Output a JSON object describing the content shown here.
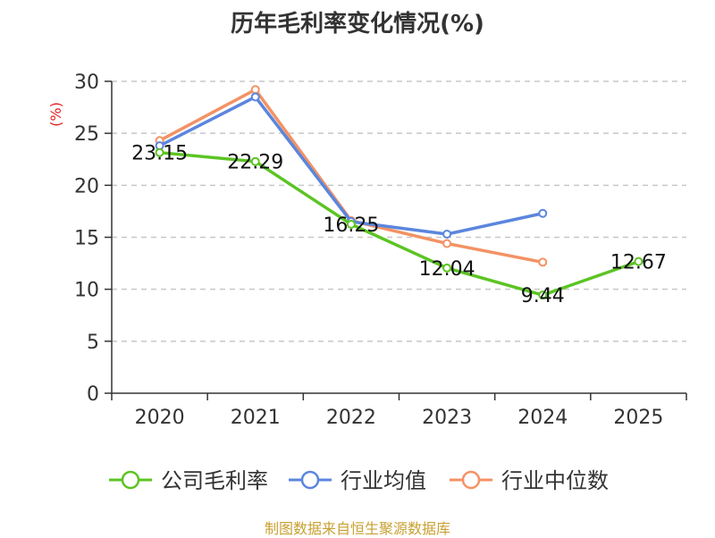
{
  "title": "历年毛利率变化情况(%)",
  "source": "制图数据来自恒生聚源数据库",
  "chart_data": {
    "type": "line",
    "title": "历年毛利率变化情况(%)",
    "ylabel": "(%)",
    "ylim": [
      0,
      30
    ],
    "yticks": [
      0,
      5,
      10,
      15,
      20,
      25,
      30
    ],
    "categories": [
      "2020",
      "2021",
      "2022",
      "2023",
      "2024",
      "2025"
    ],
    "grid": true,
    "legend_position": "bottom",
    "series": [
      {
        "name": "公司毛利率",
        "color": "#5cc424",
        "values": [
          23.15,
          22.29,
          16.25,
          12.04,
          9.44,
          12.67
        ],
        "labels": [
          "23.15",
          "22.29",
          "16.25",
          "12.04",
          "9.44",
          "12.67"
        ]
      },
      {
        "name": "行业均值",
        "color": "#5b86de",
        "values": [
          23.8,
          28.5,
          16.5,
          15.3,
          17.3,
          null
        ]
      },
      {
        "name": "行业中位数",
        "color": "#f39264",
        "values": [
          24.3,
          29.2,
          16.6,
          14.4,
          12.6,
          null
        ]
      }
    ]
  }
}
